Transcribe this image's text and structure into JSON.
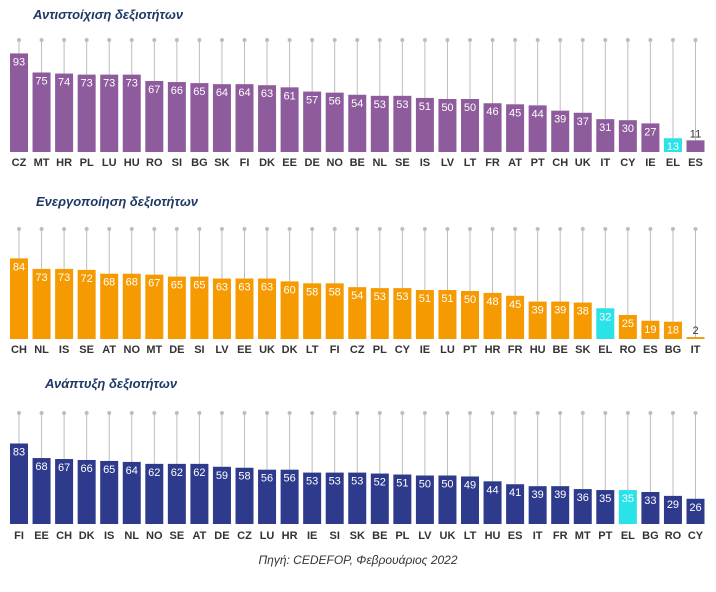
{
  "source": "Πηγή: CEDEFOP, Φεβρουάριος 2022",
  "colors": {
    "purple": "#8e5b9c",
    "orange": "#f59a00",
    "navy": "#2e3a8c",
    "highlight": "#29e3e8",
    "stem": "#bdbdbd",
    "bar_label": "#ffffff",
    "outside_label": "#333333",
    "axis_label": "#333333"
  },
  "chart_data": [
    {
      "type": "bar",
      "title": "Αντιστοίχιση δεξιοτήτων",
      "color": "#8e5b9c",
      "highlight": "EL",
      "ylim": [
        0,
        100
      ],
      "categories": [
        "CZ",
        "MT",
        "HR",
        "PL",
        "LU",
        "HU",
        "RO",
        "SI",
        "BG",
        "SK",
        "FI",
        "DK",
        "EE",
        "DE",
        "NO",
        "BE",
        "NL",
        "SE",
        "IS",
        "LV",
        "LT",
        "FR",
        "AT",
        "PT",
        "CH",
        "UK",
        "IT",
        "CY",
        "IE",
        "EL",
        "ES"
      ],
      "values": [
        93,
        75,
        74,
        73,
        73,
        73,
        67,
        66,
        65,
        64,
        64,
        63,
        61,
        57,
        56,
        54,
        53,
        53,
        51,
        50,
        50,
        46,
        45,
        44,
        39,
        37,
        31,
        30,
        27,
        13,
        11
      ]
    },
    {
      "type": "bar",
      "title": "Ενεργοποίηση δεξιοτήτων",
      "color": "#f59a00",
      "highlight": "EL",
      "ylim": [
        0,
        100
      ],
      "categories": [
        "CH",
        "NL",
        "IS",
        "SE",
        "AT",
        "NO",
        "MT",
        "DE",
        "SI",
        "LV",
        "EE",
        "UK",
        "DK",
        "LT",
        "FI",
        "CZ",
        "PL",
        "CY",
        "IE",
        "LU",
        "PT",
        "HR",
        "FR",
        "HU",
        "BE",
        "SK",
        "EL",
        "RO",
        "ES",
        "BG",
        "IT"
      ],
      "values": [
        84,
        73,
        73,
        72,
        68,
        68,
        67,
        65,
        65,
        63,
        63,
        63,
        60,
        58,
        58,
        54,
        53,
        53,
        51,
        51,
        50,
        48,
        45,
        39,
        39,
        38,
        32,
        25,
        19,
        18,
        2
      ]
    },
    {
      "type": "bar",
      "title": "Ανάπτυξη δεξιοτήτων",
      "color": "#2e3a8c",
      "highlight": "EL",
      "ylim": [
        0,
        100
      ],
      "categories": [
        "FI",
        "EE",
        "CH",
        "DK",
        "IS",
        "NL",
        "NO",
        "SE",
        "AT",
        "DE",
        "CZ",
        "LU",
        "HR",
        "IE",
        "SI",
        "SK",
        "BE",
        "PL",
        "LV",
        "UK",
        "LT",
        "HU",
        "ES",
        "IT",
        "FR",
        "MT",
        "PT",
        "EL",
        "BG",
        "RO",
        "CY"
      ],
      "values": [
        83,
        68,
        67,
        66,
        65,
        64,
        62,
        62,
        62,
        59,
        58,
        56,
        56,
        53,
        53,
        53,
        52,
        51,
        50,
        50,
        49,
        44,
        41,
        39,
        39,
        36,
        35,
        35,
        33,
        29,
        26
      ]
    }
  ]
}
